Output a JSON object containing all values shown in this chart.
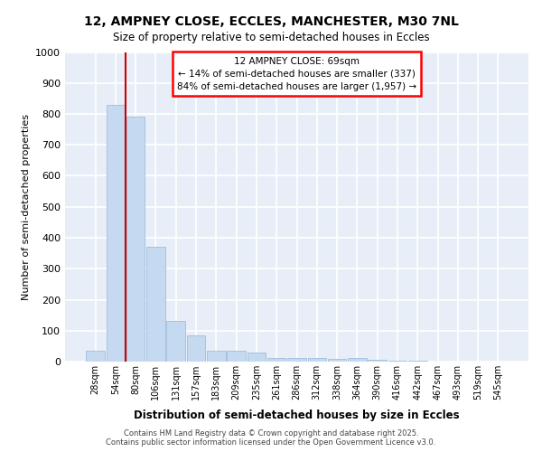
{
  "title_line1": "12, AMPNEY CLOSE, ECCLES, MANCHESTER, M30 7NL",
  "title_line2": "Size of property relative to semi-detached houses in Eccles",
  "xlabel": "Distribution of semi-detached houses by size in Eccles",
  "ylabel": "Number of semi-detached properties",
  "bar_color": "#c5d9f0",
  "bar_edge_color": "#a0bedd",
  "background_color": "#e8eef8",
  "grid_color": "#ffffff",
  "annotation_text_line1": "12 AMPNEY CLOSE: 69sqm",
  "annotation_text_line2": "← 14% of semi-detached houses are smaller (337)",
  "annotation_text_line3": "84% of semi-detached houses are larger (1,957) →",
  "vline_color": "#cc0000",
  "vline_position": 1.5,
  "bins": [
    "28sqm",
    "54sqm",
    "80sqm",
    "106sqm",
    "131sqm",
    "157sqm",
    "183sqm",
    "209sqm",
    "235sqm",
    "261sqm",
    "286sqm",
    "312sqm",
    "338sqm",
    "364sqm",
    "390sqm",
    "416sqm",
    "442sqm",
    "467sqm",
    "493sqm",
    "519sqm",
    "545sqm"
  ],
  "values": [
    35,
    830,
    790,
    370,
    130,
    85,
    35,
    35,
    30,
    12,
    12,
    12,
    10,
    12,
    5,
    3,
    2,
    1,
    1,
    1,
    1
  ],
  "ylim": [
    0,
    1000
  ],
  "yticks": [
    0,
    100,
    200,
    300,
    400,
    500,
    600,
    700,
    800,
    900,
    1000
  ],
  "footer_line1": "Contains HM Land Registry data © Crown copyright and database right 2025.",
  "footer_line2": "Contains public sector information licensed under the Open Government Licence v3.0."
}
